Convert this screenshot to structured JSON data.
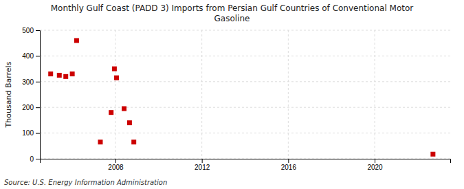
{
  "chart_data": {
    "type": "scatter",
    "title": "Monthly Gulf Coast (PADD 3) Imports from Persian Gulf Countries of Conventional Motor\nGasoline",
    "ylabel": "Thousand Barrels",
    "source": "Source: U.S. Energy Information Administration",
    "x": [
      2005.0,
      2005.4,
      2005.7,
      2006.0,
      2006.2,
      2007.3,
      2007.8,
      2007.95,
      2008.05,
      2008.4,
      2008.65,
      2008.85,
      2022.7
    ],
    "values": [
      330,
      325,
      320,
      330,
      460,
      65,
      180,
      350,
      315,
      195,
      140,
      65,
      18
    ],
    "color": "#cc0000",
    "marker": "square",
    "xlim": [
      2004.5,
      2023.5
    ],
    "ylim": [
      0,
      500
    ],
    "xticks": [
      2008,
      2012,
      2016,
      2020
    ],
    "yticks": [
      0,
      100,
      200,
      300,
      400,
      500
    ],
    "grid": true
  }
}
